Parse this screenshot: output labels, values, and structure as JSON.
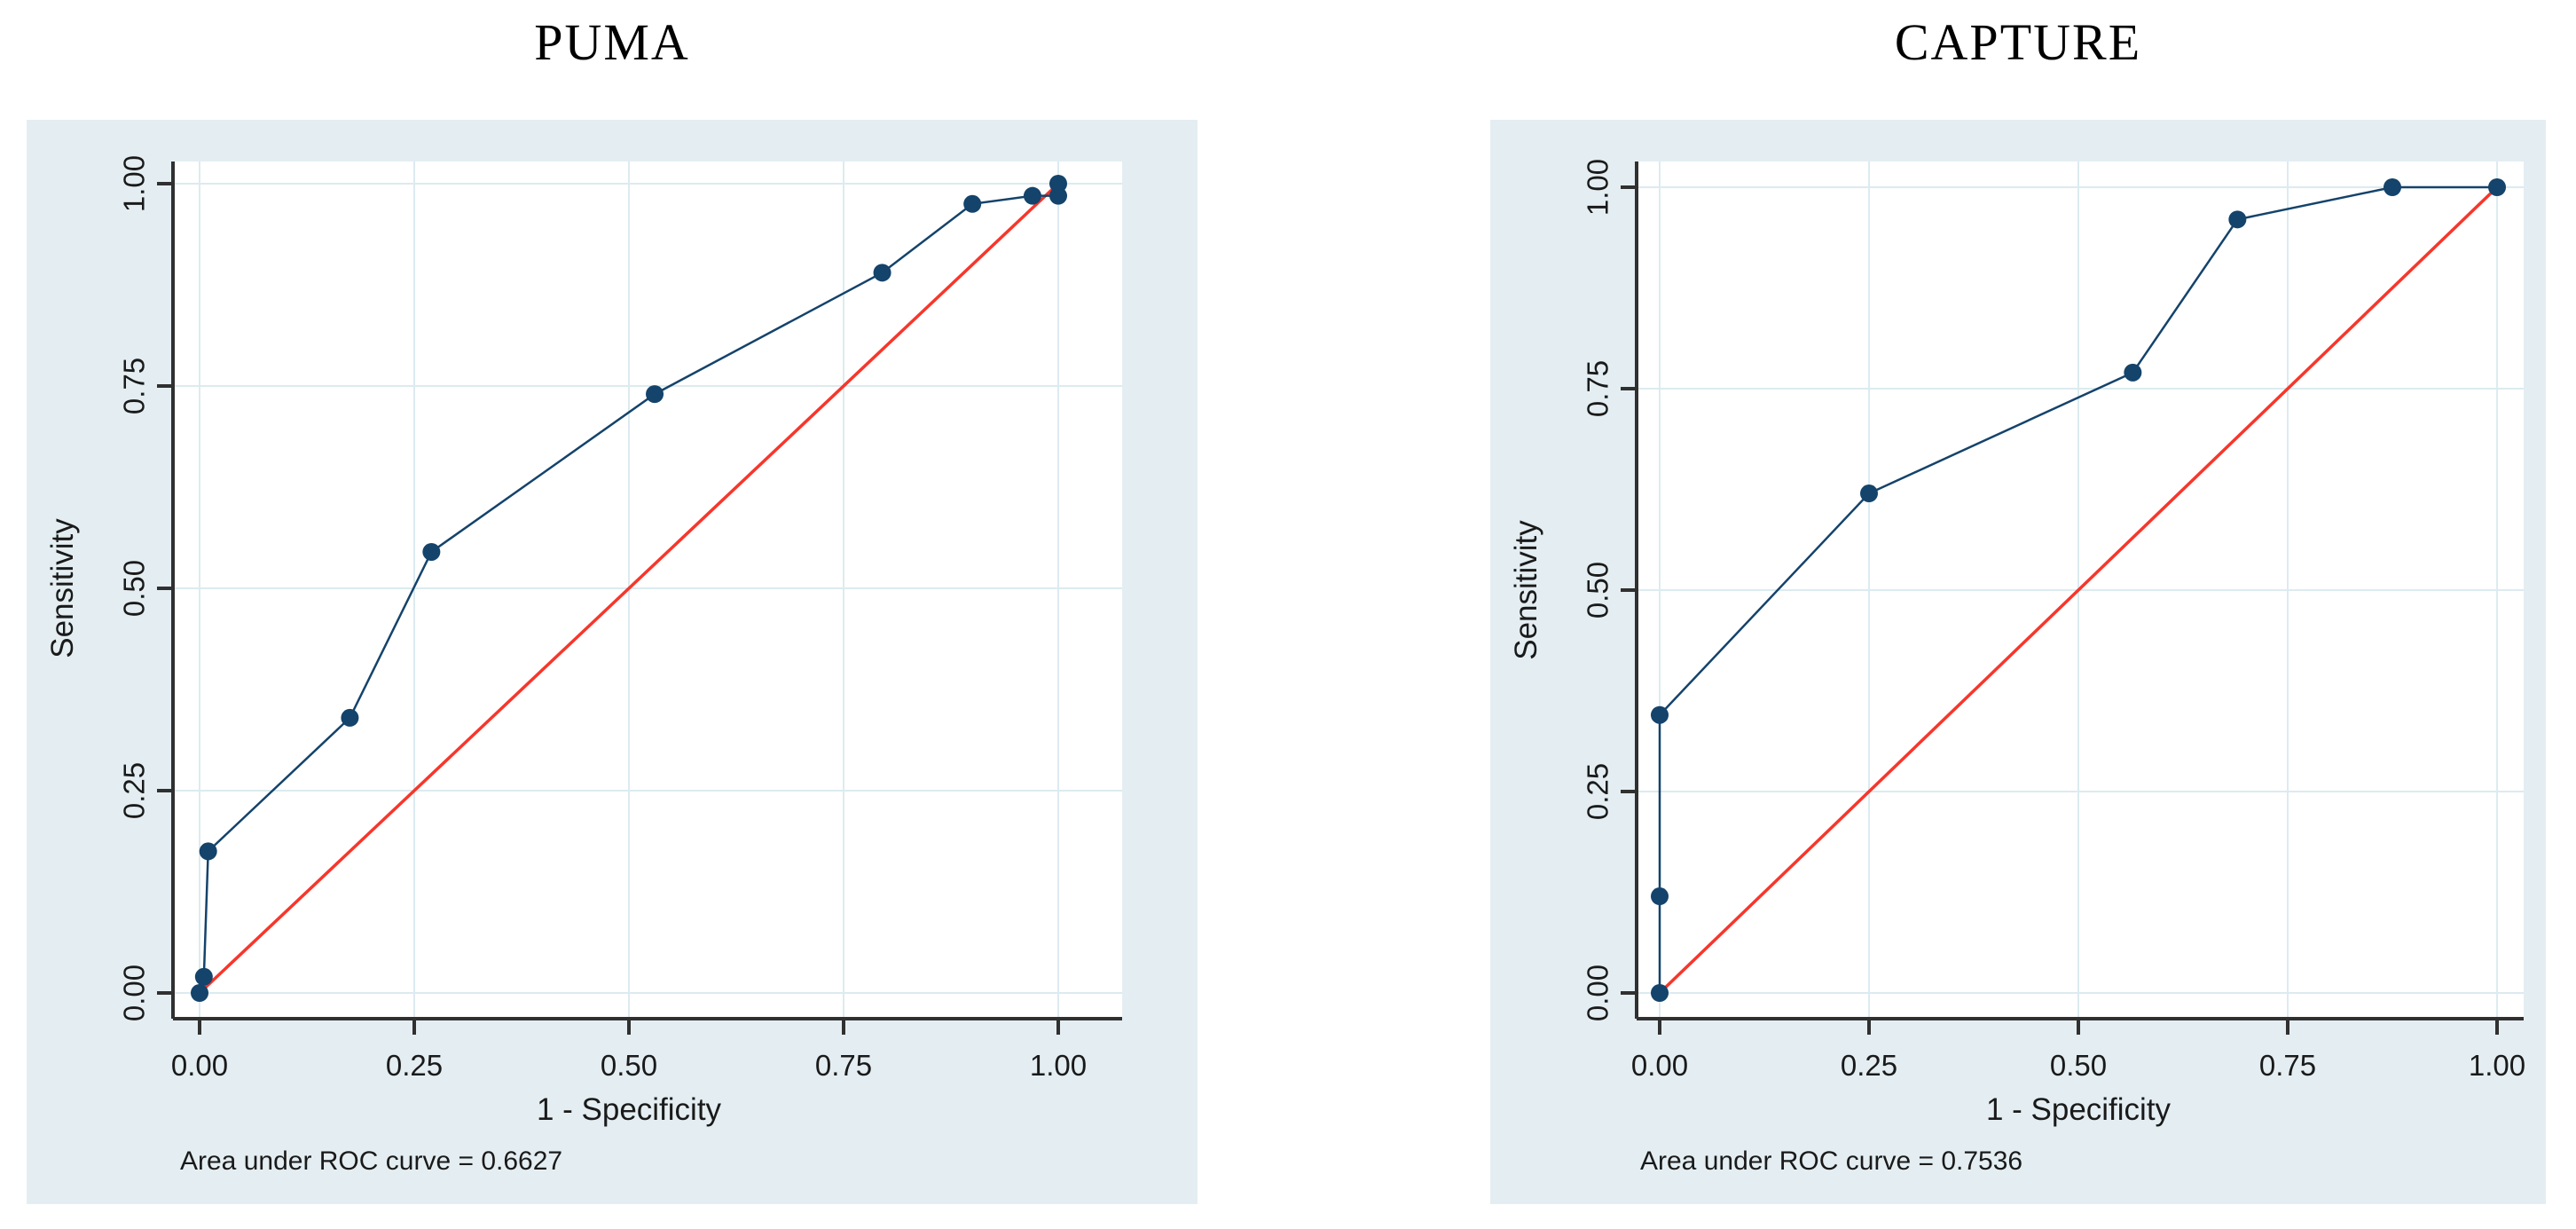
{
  "palette": {
    "panel_background": "#e4eef2",
    "plot_background": "#ffffff",
    "gridline": "#dcebf0",
    "axis_line": "#303030",
    "text": "#1a1a1a",
    "roc_color": "#14436b",
    "reference_color": "#f8362b"
  },
  "chart_data": [
    {
      "type": "line",
      "title": "PUMA",
      "xlabel": "1 - Specificity",
      "ylabel": "Sensitivity",
      "annotation": "Area under ROC curve = 0.6627",
      "auc_value": 0.6627,
      "xlim": [
        0,
        1
      ],
      "ylim": [
        0,
        1
      ],
      "ticks": [
        0,
        0.25,
        0.5,
        0.75,
        1.0
      ],
      "tick_labels": [
        "0.00",
        "0.25",
        "0.50",
        "0.75",
        "1.00"
      ],
      "grid": true,
      "legend": "none",
      "series": [
        {
          "name": "ROC curve",
          "color": "#14436b",
          "marker": "circle",
          "points": [
            [
              0,
              0
            ],
            [
              0.005,
              0.02
            ],
            [
              0.01,
              0.175
            ],
            [
              0.175,
              0.34
            ],
            [
              0.27,
              0.545
            ],
            [
              0.53,
              0.74
            ],
            [
              0.795,
              0.89
            ],
            [
              0.9,
              0.975
            ],
            [
              0.97,
              0.985
            ],
            [
              1.0,
              0.985
            ],
            [
              1.0,
              1.0
            ]
          ]
        },
        {
          "name": "Reference line",
          "color": "#f8362b",
          "marker": "none",
          "points": [
            [
              0,
              0
            ],
            [
              1,
              1
            ]
          ]
        }
      ]
    },
    {
      "type": "line",
      "title": "CAPTURE",
      "xlabel": "1 - Specificity",
      "ylabel": "Sensitivity",
      "annotation": "Area under ROC curve = 0.7536",
      "auc_value": 0.7536,
      "xlim": [
        0,
        1
      ],
      "ylim": [
        0,
        1
      ],
      "ticks": [
        0,
        0.25,
        0.5,
        0.75,
        1.0
      ],
      "tick_labels": [
        "0.00",
        "0.25",
        "0.50",
        "0.75",
        "1.00"
      ],
      "grid": true,
      "legend": "none",
      "series": [
        {
          "name": "ROC curve",
          "color": "#14436b",
          "marker": "circle",
          "points": [
            [
              0,
              0
            ],
            [
              0,
              0.12
            ],
            [
              0,
              0.345
            ],
            [
              0.25,
              0.62
            ],
            [
              0.565,
              0.77
            ],
            [
              0.69,
              0.96
            ],
            [
              0.875,
              1.0
            ],
            [
              1.0,
              1.0
            ]
          ]
        },
        {
          "name": "Reference line",
          "color": "#f8362b",
          "marker": "none",
          "points": [
            [
              0,
              0
            ],
            [
              1,
              1
            ]
          ]
        }
      ]
    }
  ]
}
